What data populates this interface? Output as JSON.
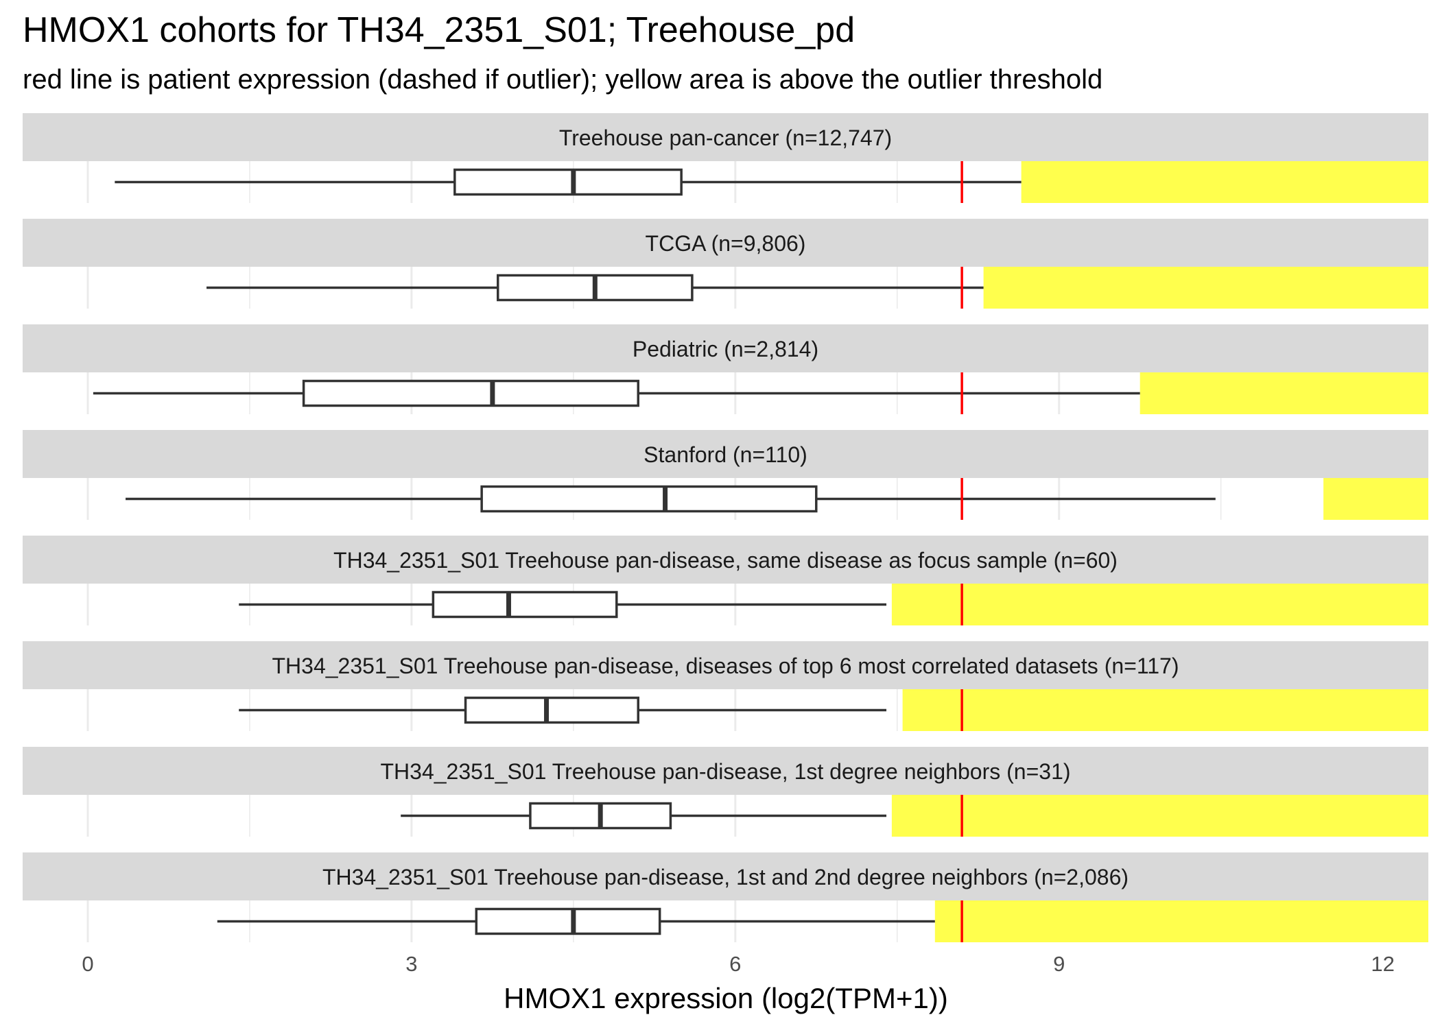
{
  "chart_data": {
    "type": "boxplot",
    "title": "HMOX1 cohorts for TH34_2351_S01; Treehouse_pd",
    "subtitle": "red line is patient expression (dashed if outlier); yellow area is above the outlier threshold",
    "xlabel": "HMOX1 expression (log2(TPM+1))",
    "xlim": [
      -0.6,
      12.4
    ],
    "xticks": [
      0,
      3,
      6,
      9,
      12
    ],
    "grid": true,
    "colors": {
      "patient_line": "#ff0000",
      "outlier_area": "#ffff4d",
      "strip_background": "#d9d9d9",
      "box_line": "#333333",
      "grid": "#ebebeb"
    },
    "patient_expression": 8.1,
    "panels": [
      {
        "label": "Treehouse pan-cancer (n=12,747)",
        "whisker_low": 0.25,
        "q1": 3.4,
        "median": 4.5,
        "q3": 5.5,
        "whisker_high": 8.65,
        "outlier_threshold": 8.65
      },
      {
        "label": "TCGA (n=9,806)",
        "whisker_low": 1.1,
        "q1": 3.8,
        "median": 4.7,
        "q3": 5.6,
        "whisker_high": 8.3,
        "outlier_threshold": 8.3
      },
      {
        "label": "Pediatric (n=2,814)",
        "whisker_low": 0.05,
        "q1": 2.0,
        "median": 3.75,
        "q3": 5.1,
        "whisker_high": 9.75,
        "outlier_threshold": 9.75
      },
      {
        "label": "Stanford (n=110)",
        "whisker_low": 0.35,
        "q1": 3.65,
        "median": 5.35,
        "q3": 6.75,
        "whisker_high": 10.45,
        "outlier_threshold": 11.45
      },
      {
        "label": "TH34_2351_S01 Treehouse pan-disease, same disease as focus sample (n=60)",
        "whisker_low": 1.4,
        "q1": 3.2,
        "median": 3.9,
        "q3": 4.9,
        "whisker_high": 7.4,
        "outlier_threshold": 7.45
      },
      {
        "label": "TH34_2351_S01 Treehouse pan-disease, diseases of top 6 most correlated datasets (n=117)",
        "whisker_low": 1.4,
        "q1": 3.5,
        "median": 4.25,
        "q3": 5.1,
        "whisker_high": 7.4,
        "outlier_threshold": 7.55
      },
      {
        "label": "TH34_2351_S01 Treehouse pan-disease, 1st degree neighbors (n=31)",
        "whisker_low": 2.9,
        "q1": 4.1,
        "median": 4.75,
        "q3": 5.4,
        "whisker_high": 7.4,
        "outlier_threshold": 7.45
      },
      {
        "label": "TH34_2351_S01 Treehouse pan-disease, 1st and 2nd degree neighbors (n=2,086)",
        "whisker_low": 1.2,
        "q1": 3.6,
        "median": 4.5,
        "q3": 5.3,
        "whisker_high": 7.85,
        "outlier_threshold": 7.85
      }
    ]
  }
}
